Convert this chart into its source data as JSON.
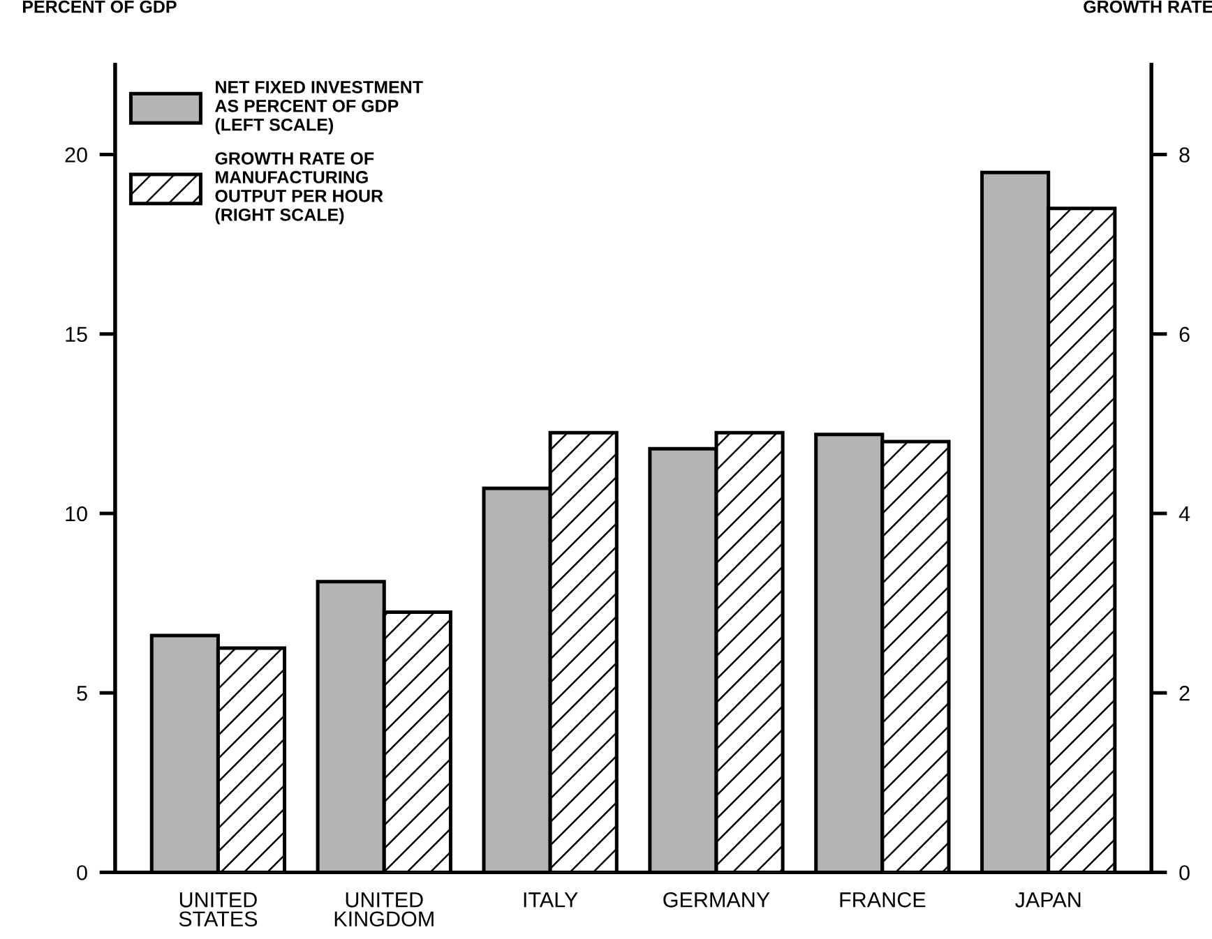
{
  "chart_data": {
    "type": "bar",
    "ylabel": "PERCENT OF GDP",
    "y2label": "GROWTH RATE",
    "categories": [
      "UNITED\nSTATES",
      "UNITED\nKINGDOM",
      "ITALY",
      "GERMANY",
      "FRANCE",
      "JAPAN"
    ],
    "series": [
      {
        "name": "NET FIXED INVESTMENT\nAS PERCENT OF GDP\n(LEFT SCALE)",
        "color": "#b4b4b4",
        "values": [
          6.6,
          8.1,
          10.7,
          11.8,
          12.2,
          19.5
        ]
      },
      {
        "name": "GROWTH RATE OF\nMANUFACTURING\nOUTPUT PER HOUR\n(RIGHT SCALE)",
        "color": "#ffffff",
        "axis": "y2",
        "values": [
          2.5,
          2.9,
          4.9,
          4.9,
          4.8,
          7.4
        ]
      }
    ],
    "ylim": [
      0,
      22.5
    ],
    "yticks": [
      0,
      5,
      10,
      15,
      20
    ],
    "y2lim": [
      0,
      9
    ],
    "y2ticks": [
      0,
      2,
      4,
      6,
      8
    ],
    "grid": false,
    "legend": "top left"
  }
}
